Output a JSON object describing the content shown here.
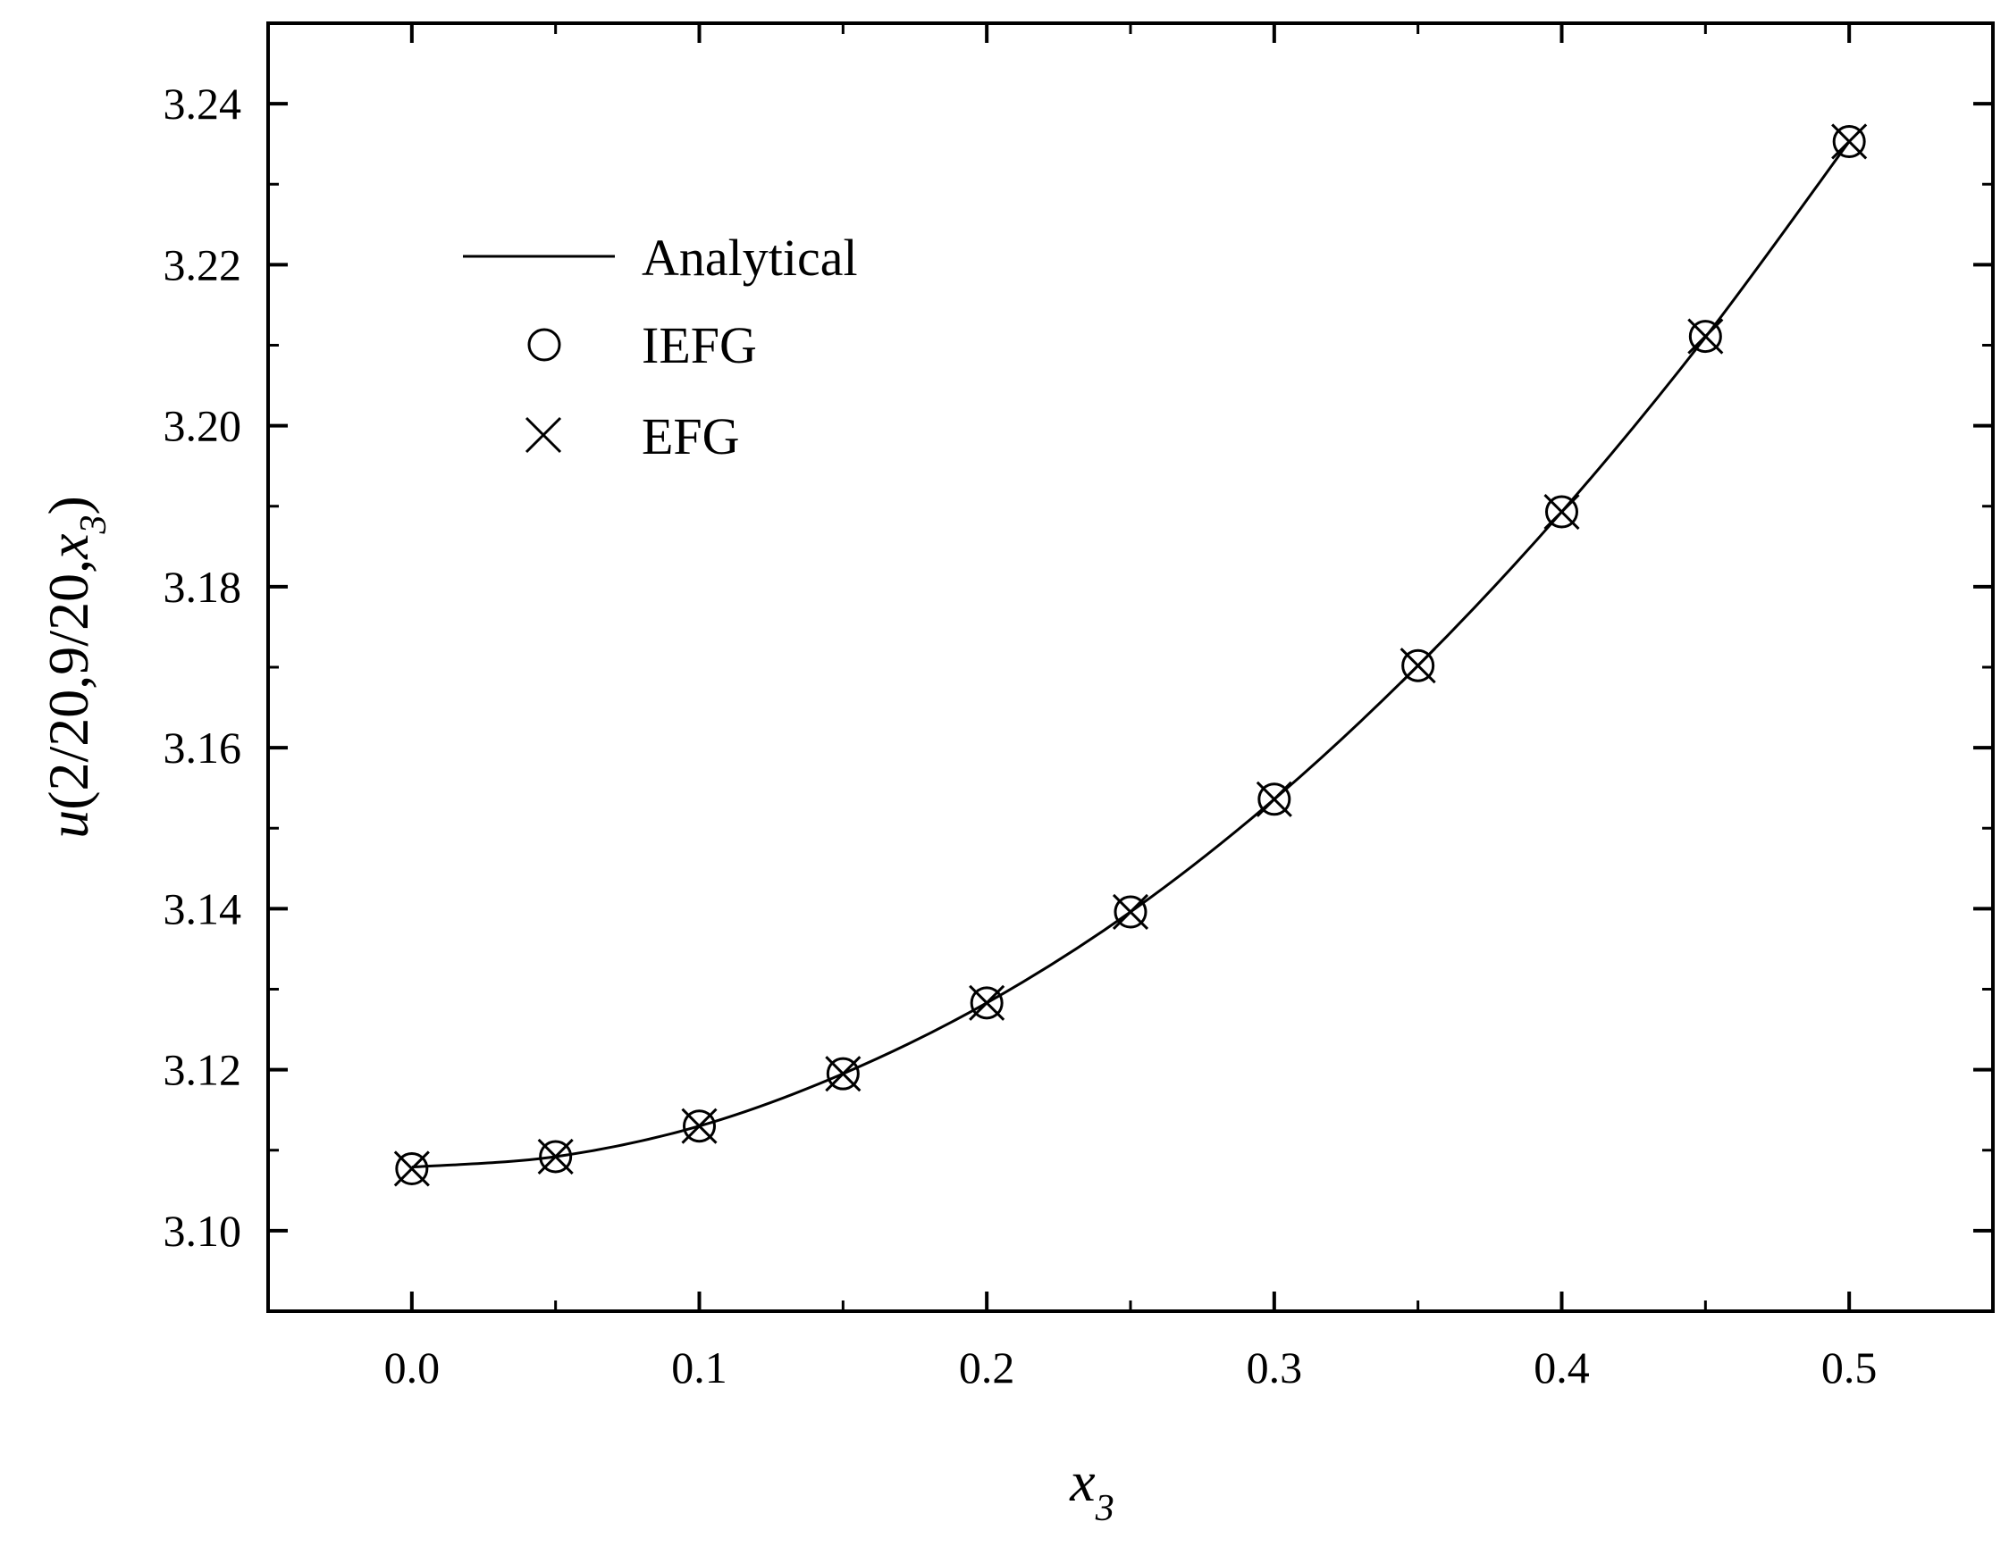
{
  "chart_data": {
    "type": "line",
    "xlabel": {
      "main": "x",
      "sub": "3"
    },
    "ylabel": {
      "prefix": "u",
      "args": "(2/20,9/20,",
      "var": "x",
      "sub": "3",
      "close": ")"
    },
    "xlim": [
      -0.05,
      0.55
    ],
    "ylim": [
      3.09,
      3.25
    ],
    "xticks": [
      0.0,
      0.1,
      0.2,
      0.3,
      0.4,
      0.5
    ],
    "xtick_labels": [
      "0.0",
      "0.1",
      "0.2",
      "0.3",
      "0.4",
      "0.5"
    ],
    "yticks": [
      3.1,
      3.12,
      3.14,
      3.16,
      3.18,
      3.2,
      3.22,
      3.24
    ],
    "ytick_labels": [
      "3.10",
      "3.12",
      "3.14",
      "3.16",
      "3.18",
      "3.20",
      "3.22",
      "3.24"
    ],
    "grid": false,
    "legend_position": "top-left",
    "series": [
      {
        "name": "Analytical",
        "style": "line",
        "x": [
          0.0,
          0.05,
          0.1,
          0.15,
          0.2,
          0.25,
          0.3,
          0.35,
          0.4,
          0.45,
          0.5
        ],
        "y": [
          3.1079,
          3.1092,
          3.113,
          3.1195,
          3.1283,
          3.1396,
          3.1536,
          3.1702,
          3.1893,
          3.211,
          3.2353
        ]
      },
      {
        "name": "IEFG",
        "style": "circle",
        "x": [
          0.0,
          0.05,
          0.1,
          0.15,
          0.2,
          0.25,
          0.3,
          0.35,
          0.4,
          0.45,
          0.5
        ],
        "y": [
          3.1077,
          3.1092,
          3.113,
          3.1195,
          3.1283,
          3.1396,
          3.1536,
          3.1702,
          3.1893,
          3.2111,
          3.2353
        ]
      },
      {
        "name": "EFG",
        "style": "cross",
        "x": [
          0.0,
          0.05,
          0.1,
          0.15,
          0.2,
          0.25,
          0.3,
          0.35,
          0.4,
          0.45,
          0.5
        ],
        "y": [
          3.1077,
          3.1092,
          3.113,
          3.1195,
          3.1283,
          3.1396,
          3.1536,
          3.1702,
          3.1893,
          3.2111,
          3.2353
        ]
      }
    ],
    "colors": {
      "line": "#000000",
      "background": "#ffffff"
    }
  }
}
